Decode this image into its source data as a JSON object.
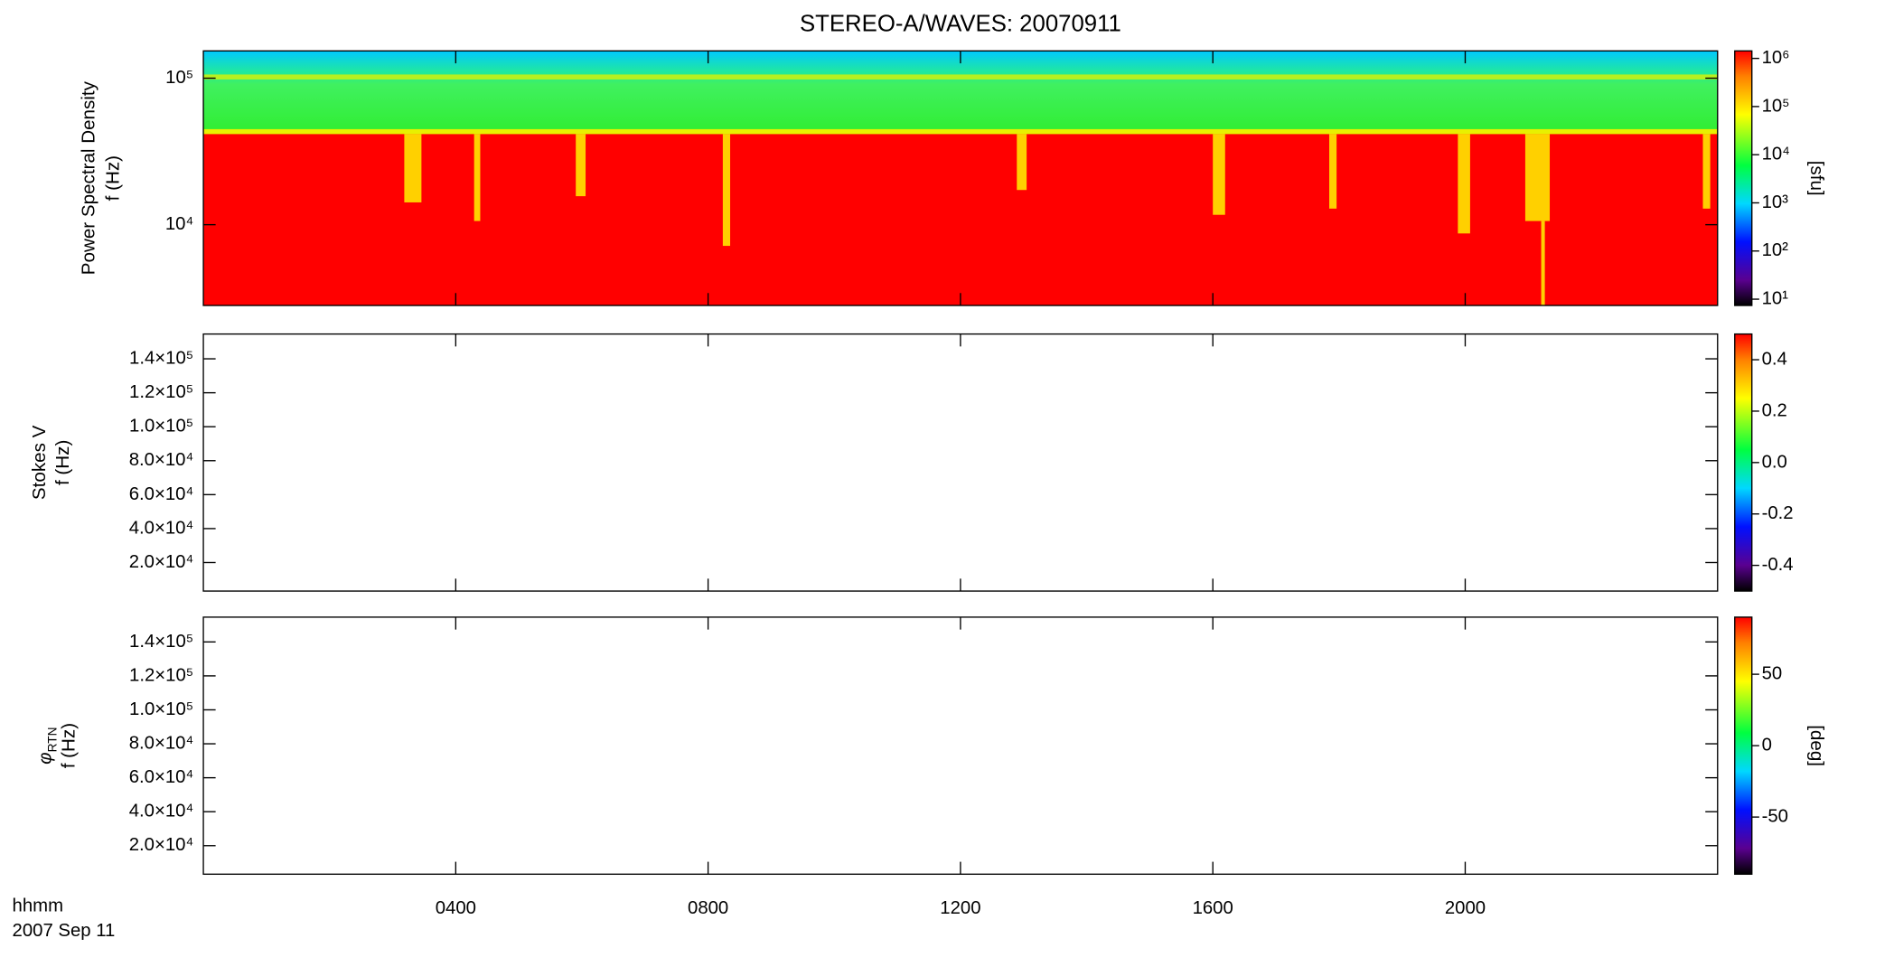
{
  "chart_data": [
    {
      "type": "spectrogram",
      "title": "STEREO-A/WAVES: 20070911",
      "ylabel": [
        "Power Spectral Density",
        "f (Hz)"
      ],
      "ylog": true,
      "ylim": [
        2810,
        153500
      ],
      "yticks": [
        {
          "value": 10000,
          "label": "10⁴"
        },
        {
          "value": 100000,
          "label": "10⁵"
        }
      ],
      "xlim": [
        0,
        24
      ],
      "xticks": [
        4,
        8,
        12,
        16,
        20
      ],
      "colorbar": {
        "log": true,
        "lim": [
          7.4,
          1430000
        ],
        "label": "[sfu]",
        "ticks": [
          {
            "value": 10,
            "label": "10¹"
          },
          {
            "value": 100,
            "label": "10²"
          },
          {
            "value": 1000,
            "label": "10³"
          },
          {
            "value": 10000,
            "label": "10⁴"
          },
          {
            "value": 100000,
            "label": "10⁵"
          },
          {
            "value": 1000000,
            "label": "10⁶"
          }
        ]
      }
    },
    {
      "type": "spectrogram",
      "ylabel": [
        "Stokes V",
        "f (Hz)"
      ],
      "ylog": false,
      "ylim": [
        3200,
        154600
      ],
      "yticks": [
        {
          "value": 20000,
          "label": "2.0×10⁴"
        },
        {
          "value": 40000,
          "label": "4.0×10⁴"
        },
        {
          "value": 60000,
          "label": "6.0×10⁴"
        },
        {
          "value": 80000,
          "label": "8.0×10⁴"
        },
        {
          "value": 100000,
          "label": "1.0×10⁵"
        },
        {
          "value": 120000,
          "label": "1.2×10⁵"
        },
        {
          "value": 140000,
          "label": "1.4×10⁵"
        }
      ],
      "xlim": [
        0,
        24
      ],
      "xticks": [
        4,
        8,
        12,
        16,
        20
      ],
      "colorbar": {
        "log": false,
        "lim": [
          -0.5,
          0.5
        ],
        "ticks": [
          {
            "value": -0.4,
            "label": "-0.4"
          },
          {
            "value": -0.2,
            "label": "-0.2"
          },
          {
            "value": 0,
            "label": "0.0"
          },
          {
            "value": 0.2,
            "label": "0.2"
          },
          {
            "value": 0.4,
            "label": "0.4"
          }
        ]
      }
    },
    {
      "type": "spectrogram",
      "ylabel": [
        {
          "text": "φ",
          "sub": "RTN"
        },
        "f (Hz)"
      ],
      "ylog": false,
      "ylim": [
        3200,
        154600
      ],
      "yticks": [
        {
          "value": 20000,
          "label": "2.0×10⁴"
        },
        {
          "value": 40000,
          "label": "4.0×10⁴"
        },
        {
          "value": 60000,
          "label": "6.0×10⁴"
        },
        {
          "value": 80000,
          "label": "8.0×10⁴"
        },
        {
          "value": 100000,
          "label": "1.0×10⁵"
        },
        {
          "value": 120000,
          "label": "1.2×10⁵"
        },
        {
          "value": 140000,
          "label": "1.4×10⁵"
        }
      ],
      "xlim": [
        0,
        24
      ],
      "xticks": [
        {
          "value": 4,
          "label": "0400"
        },
        {
          "value": 8,
          "label": "0800"
        },
        {
          "value": 12,
          "label": "1200"
        },
        {
          "value": 16,
          "label": "1600"
        },
        {
          "value": 20,
          "label": "2000"
        }
      ],
      "xlabel": [
        "hhmm",
        "2007 Sep 11"
      ],
      "colorbar": {
        "log": false,
        "lim": [
          -90,
          90
        ],
        "label": "[deg]",
        "ticks": [
          -50,
          0,
          50
        ]
      }
    }
  ]
}
